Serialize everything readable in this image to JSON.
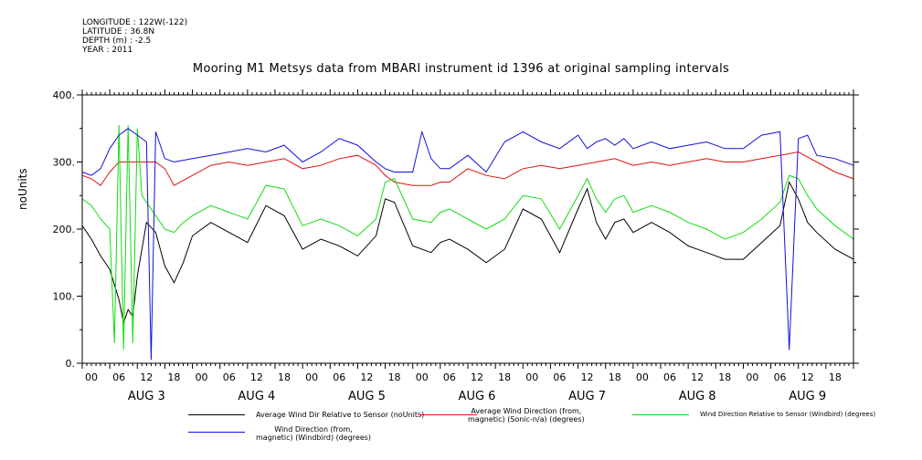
{
  "header": {
    "longitude": "LONGITUDE : 122W(-122)",
    "latitude": "LATITUDE : 36.8N",
    "depth": "DEPTH (m) : -2.5",
    "year": "YEAR : 2011"
  },
  "chart_data": {
    "type": "line",
    "title": "Mooring M1 Metsys data from MBARI instrument id 1396 at original sampling intervals",
    "ylabel": "noUnits",
    "ylim": [
      0,
      400
    ],
    "yticks": [
      "0.",
      "100.",
      "200.",
      "300.",
      "400."
    ],
    "xlim": [
      0,
      168
    ],
    "hour_labels": [
      "00",
      "06",
      "12",
      "18"
    ],
    "day_labels": [
      "AUG  3",
      "AUG  4",
      "AUG  5",
      "AUG  6",
      "AUG  7",
      "AUG  8",
      "AUG  9"
    ],
    "grid": false,
    "legend_position": "bottom",
    "series": [
      {
        "name": "Average Wind Dir Relative to Sensor (noUnits)",
        "color": "#000000",
        "x": [
          0,
          2,
          4,
          6,
          8,
          9,
          10,
          11,
          12,
          14,
          16,
          18,
          20,
          22,
          24,
          28,
          32,
          36,
          40,
          44,
          48,
          52,
          56,
          60,
          64,
          66,
          68,
          72,
          76,
          78,
          80,
          84,
          88,
          92,
          96,
          100,
          104,
          108,
          110,
          112,
          114,
          116,
          118,
          120,
          124,
          128,
          132,
          136,
          140,
          144,
          148,
          152,
          154,
          156,
          158,
          160,
          164,
          168
        ],
        "values": [
          205,
          185,
          160,
          140,
          95,
          60,
          80,
          70,
          130,
          210,
          195,
          145,
          120,
          150,
          190,
          210,
          195,
          180,
          235,
          220,
          170,
          185,
          175,
          160,
          190,
          245,
          240,
          175,
          165,
          180,
          185,
          170,
          150,
          170,
          230,
          215,
          165,
          230,
          260,
          210,
          185,
          210,
          215,
          195,
          210,
          195,
          175,
          165,
          155,
          155,
          180,
          205,
          270,
          245,
          210,
          195,
          170,
          155
        ]
      },
      {
        "name": "Average Wind Direction (from, magnetic) (Sonic-n/a) (degrees)",
        "color": "#e01010",
        "x": [
          0,
          2,
          4,
          6,
          8,
          10,
          12,
          14,
          16,
          18,
          20,
          24,
          28,
          32,
          36,
          40,
          44,
          48,
          52,
          56,
          60,
          64,
          66,
          68,
          72,
          76,
          78,
          80,
          84,
          88,
          92,
          96,
          100,
          104,
          108,
          112,
          116,
          120,
          124,
          128,
          132,
          136,
          140,
          144,
          148,
          152,
          156,
          160,
          164,
          168
        ],
        "values": [
          280,
          275,
          265,
          285,
          300,
          300,
          300,
          300,
          300,
          290,
          265,
          280,
          295,
          300,
          295,
          300,
          305,
          290,
          295,
          305,
          310,
          295,
          280,
          270,
          265,
          265,
          270,
          270,
          290,
          280,
          275,
          290,
          295,
          290,
          295,
          300,
          305,
          295,
          300,
          295,
          300,
          305,
          300,
          300,
          305,
          310,
          315,
          300,
          285,
          275
        ]
      },
      {
        "name": "Wind Direction Relative to Sensor (Windbird) (degrees)",
        "color": "#10dd10",
        "x": [
          0,
          2,
          4,
          6,
          7,
          8,
          9,
          10,
          11,
          12,
          13,
          14,
          16,
          18,
          20,
          22,
          24,
          28,
          32,
          36,
          40,
          44,
          48,
          52,
          56,
          60,
          64,
          66,
          68,
          72,
          76,
          78,
          80,
          84,
          88,
          92,
          96,
          100,
          104,
          108,
          110,
          112,
          114,
          116,
          118,
          120,
          124,
          128,
          132,
          136,
          140,
          144,
          148,
          152,
          154,
          156,
          158,
          160,
          164,
          168
        ],
        "values": [
          245,
          235,
          215,
          200,
          30,
          355,
          20,
          355,
          30,
          350,
          250,
          240,
          220,
          200,
          195,
          210,
          220,
          235,
          225,
          215,
          265,
          260,
          205,
          215,
          205,
          190,
          215,
          270,
          275,
          215,
          210,
          225,
          230,
          215,
          200,
          215,
          250,
          245,
          200,
          250,
          275,
          245,
          225,
          245,
          250,
          225,
          235,
          225,
          210,
          200,
          185,
          195,
          215,
          240,
          280,
          275,
          250,
          230,
          205,
          185
        ]
      },
      {
        "name": "Wind Direction (from, magnetic) (Windbird) (degrees)",
        "color": "#1010dd",
        "x": [
          0,
          2,
          4,
          6,
          8,
          10,
          12,
          14,
          15,
          16,
          18,
          20,
          24,
          28,
          32,
          36,
          40,
          44,
          48,
          52,
          56,
          60,
          64,
          66,
          68,
          72,
          74,
          76,
          78,
          80,
          84,
          88,
          92,
          96,
          100,
          104,
          108,
          110,
          112,
          114,
          116,
          118,
          120,
          124,
          128,
          132,
          136,
          140,
          144,
          148,
          152,
          154,
          156,
          158,
          160,
          164,
          168
        ],
        "values": [
          285,
          280,
          290,
          320,
          340,
          350,
          340,
          330,
          5,
          345,
          305,
          300,
          305,
          310,
          315,
          320,
          315,
          325,
          300,
          315,
          335,
          325,
          300,
          290,
          285,
          285,
          345,
          305,
          290,
          290,
          310,
          285,
          330,
          345,
          330,
          320,
          340,
          320,
          330,
          335,
          325,
          335,
          320,
          330,
          320,
          325,
          330,
          320,
          320,
          340,
          345,
          20,
          335,
          340,
          310,
          305,
          295
        ]
      }
    ]
  },
  "legend": {
    "item1": "Average Wind Dir Relative to Sensor (noUnits)",
    "item2a": "Average Wind Direction (from,",
    "item2b": "magnetic) (Sonic-n/a) (degrees)",
    "item3": "Wind Direction Relative to Sensor (Windbird) (degrees)",
    "item4a": "Wind Direction (from,",
    "item4b": "magnetic) (Windbird) (degrees)"
  }
}
